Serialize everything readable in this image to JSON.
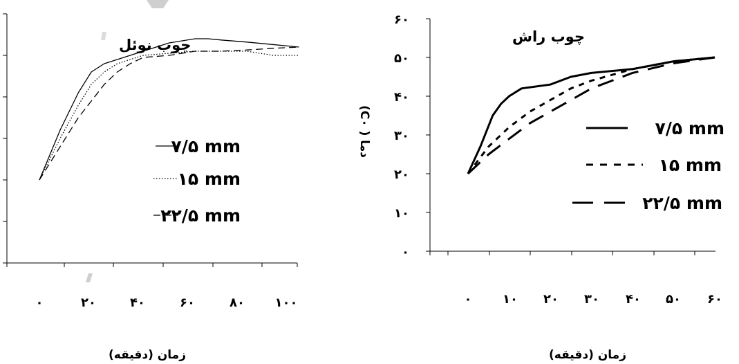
{
  "chart_data": [
    {
      "type": "line",
      "title": "چوب نوئل",
      "xlabel": "زمان (دقیقه)",
      "ylabel": "",
      "x_ticks": [
        "۰",
        "۲۰",
        "۴۰",
        "۶۰",
        "۸۰",
        "۱۰۰"
      ],
      "xlim": [
        0,
        110
      ],
      "ylim": [
        0,
        60
      ],
      "grid": false,
      "legend_position": "right",
      "series": [
        {
          "name": "۷/۵ mm",
          "style": "solid",
          "x": [
            0,
            8,
            15,
            20,
            25,
            30,
            35,
            40,
            50,
            60,
            65,
            70,
            80,
            100
          ],
          "y": [
            20,
            32,
            41,
            46,
            48,
            49,
            50,
            51,
            53,
            54,
            54,
            53.7,
            53.2,
            52
          ]
        },
        {
          "name": "۱۵ mm",
          "style": "dotted",
          "x": [
            0,
            8,
            15,
            20,
            25,
            30,
            35,
            40,
            50,
            60,
            70,
            80,
            85,
            90,
            100
          ],
          "y": [
            20,
            30,
            38,
            43,
            46,
            48,
            49,
            50,
            50.5,
            51,
            51,
            51,
            50.5,
            50,
            50
          ]
        },
        {
          "name": "۲۲/۵ mm",
          "style": "dashed",
          "x": [
            0,
            8,
            15,
            20,
            25,
            30,
            35,
            40,
            50,
            60,
            70,
            80,
            90,
            100
          ],
          "y": [
            20,
            28,
            35,
            39,
            43,
            46,
            48,
            49.5,
            50,
            51,
            51,
            51.3,
            51.7,
            52
          ]
        }
      ]
    },
    {
      "type": "line",
      "title": "چوب راش",
      "xlabel": "زمان (دقیقه)",
      "ylabel": "دما ( C۰)",
      "x_ticks": [
        "۰",
        "۱۰",
        "۲۰",
        "۳۰",
        "۴۰",
        "۵۰",
        "۶۰"
      ],
      "y_ticks": [
        "۰",
        "۱۰",
        "۲۰",
        "۳۰",
        "۴۰",
        "۵۰",
        "۶۰"
      ],
      "xlim": [
        0,
        60
      ],
      "ylim": [
        0,
        60
      ],
      "grid": false,
      "legend_position": "right",
      "series": [
        {
          "name": "۷/۵ mm",
          "style": "solid",
          "x": [
            0,
            3,
            6,
            8,
            10,
            13,
            20,
            25,
            30,
            40,
            50,
            60
          ],
          "y": [
            20,
            27,
            35,
            38,
            40,
            42,
            43,
            45,
            46,
            47,
            49,
            50
          ]
        },
        {
          "name": "۱۵ mm",
          "style": "dotted",
          "x": [
            0,
            5,
            10,
            15,
            20,
            25,
            30,
            40,
            50,
            60
          ],
          "y": [
            20,
            27,
            32,
            36,
            39,
            42,
            44,
            47,
            49,
            50
          ]
        },
        {
          "name": "۲۲/۵ mm",
          "style": "dashed",
          "x": [
            0,
            5,
            10,
            15,
            20,
            25,
            30,
            40,
            50,
            60
          ],
          "y": [
            20,
            25,
            29,
            33,
            36,
            39,
            42,
            46,
            48.5,
            50
          ]
        }
      ]
    }
  ]
}
